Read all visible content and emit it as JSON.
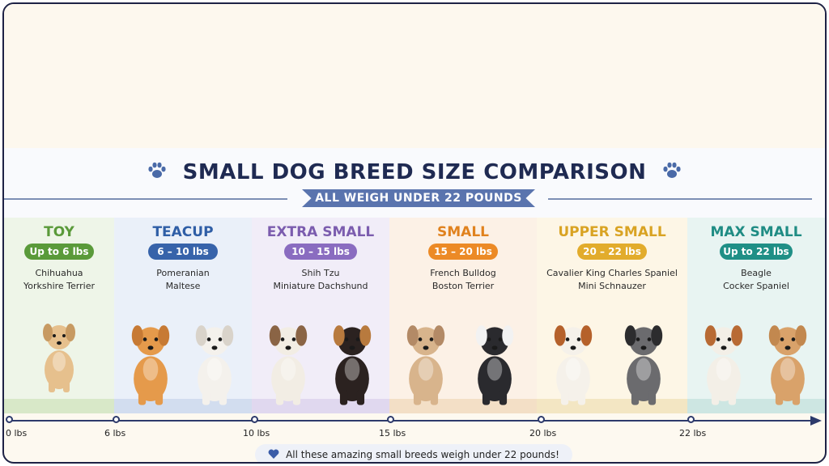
{
  "title": "SMALL DOG BREED SIZE COMPARISON",
  "subtitle": "ALL WEIGH UNDER 22 POUNDS",
  "categories": [
    {
      "name": "TOY",
      "range": "Up to 6 lbs",
      "breeds": [
        "Chihuahua",
        "Yorkshire Terrier"
      ],
      "color": "#5a9a3a",
      "pill_color": "#5a9a3a",
      "bg": "#eef5e8",
      "ground": "#d8e8c8"
    },
    {
      "name": "TEACUP",
      "range": "6 – 10 lbs",
      "breeds": [
        "Pomeranian",
        "Maltese"
      ],
      "color": "#2f5ea6",
      "pill_color": "#3763aa",
      "bg": "#eaf0f9",
      "ground": "#d2ddef"
    },
    {
      "name": "EXTRA SMALL",
      "range": "10 – 15 lbs",
      "breeds": [
        "Shih Tzu",
        "Miniature Dachshund"
      ],
      "color": "#7b5cae",
      "pill_color": "#8a6cc0",
      "bg": "#f1edf8",
      "ground": "#e0d8ef"
    },
    {
      "name": "SMALL",
      "range": "15 – 20 lbs",
      "breeds": [
        "French Bulldog",
        "Boston Terrier"
      ],
      "color": "#e0821e",
      "pill_color": "#ec8a26",
      "bg": "#fcf1e6",
      "ground": "#f3dfc6"
    },
    {
      "name": "UPPER SMALL",
      "range": "20 – 22 lbs",
      "breeds": [
        "Cavalier King Charles Spaniel",
        "Mini Schnauzer"
      ],
      "color": "#d9a323",
      "pill_color": "#e2ac2c",
      "bg": "#fdf6e6",
      "ground": "#f3e6c3"
    },
    {
      "name": "MAX SMALL",
      "range": "Up to 22 lbs",
      "breeds": [
        "Beagle",
        "Cocker Spaniel"
      ],
      "color": "#1f8c84",
      "pill_color": "#1f8f86",
      "bg": "#e8f4f2",
      "ground": "#cde6e2"
    }
  ],
  "axis": {
    "ticks": [
      "0 lbs",
      "6 lbs",
      "10 lbs",
      "15 lbs",
      "20 lbs",
      "22 lbs"
    ]
  },
  "footer": "All these amazing small breeds weigh under 22 pounds!",
  "icons": {
    "title": "paw-icon",
    "footer": "heart-icon"
  },
  "colors": {
    "title": "#1f2a52",
    "ribbon": "#5a74ae",
    "axis": "#2d3a6b",
    "heart": "#3a5ca8"
  }
}
